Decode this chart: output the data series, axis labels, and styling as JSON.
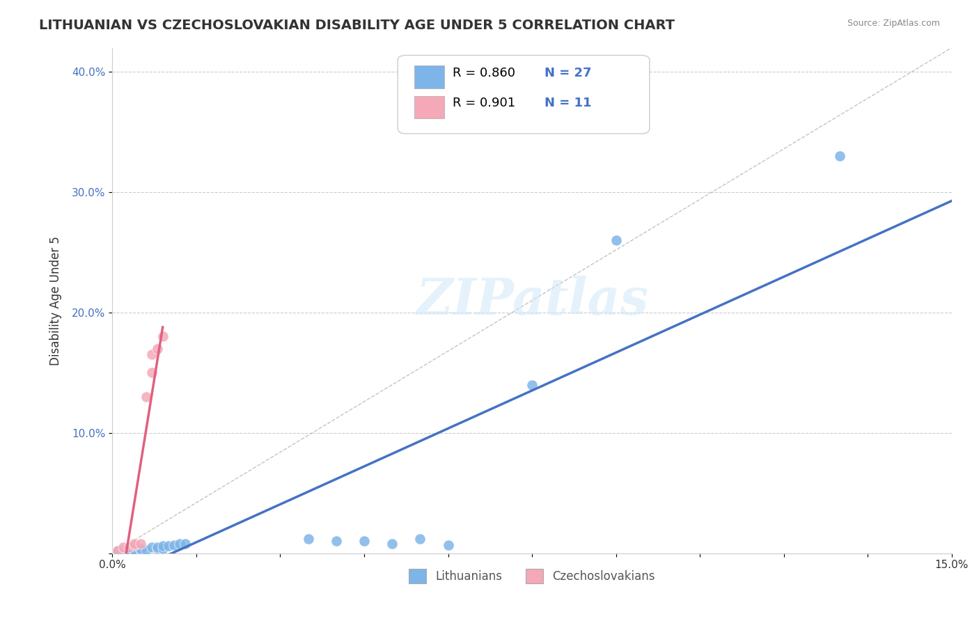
{
  "title": "LITHUANIAN VS CZECHOSLOVAKIAN DISABILITY AGE UNDER 5 CORRELATION CHART",
  "source": "Source: ZipAtlas.com",
  "ylabel": "Disability Age Under 5",
  "xlim": [
    0.0,
    0.15
  ],
  "ylim": [
    0.0,
    0.42
  ],
  "xticks": [
    0.0,
    0.015,
    0.03,
    0.045,
    0.06,
    0.075,
    0.09,
    0.105,
    0.12,
    0.135,
    0.15
  ],
  "yticks": [
    0.0,
    0.1,
    0.2,
    0.3,
    0.4
  ],
  "ytick_labels": [
    "",
    "10.0%",
    "20.0%",
    "30.0%",
    "40.0%"
  ],
  "xtick_labels": [
    "0.0%",
    "",
    "",
    "",
    "",
    "",
    "",
    "",
    "",
    "",
    "15.0%"
  ],
  "background_color": "#ffffff",
  "grid_color": "#cccccc",
  "watermark": "ZIPatlas",
  "legend_R_blue": "0.860",
  "legend_N_blue": "27",
  "legend_R_pink": "0.901",
  "legend_N_pink": "11",
  "blue_color": "#7EB5E8",
  "pink_color": "#F4A8B8",
  "blue_line_color": "#4472C4",
  "pink_line_color": "#E06080",
  "blue_scatter": [
    [
      0.001,
      0.002
    ],
    [
      0.002,
      0.003
    ],
    [
      0.003,
      0.002
    ],
    [
      0.003,
      0.003
    ],
    [
      0.004,
      0.002
    ],
    [
      0.004,
      0.003
    ],
    [
      0.005,
      0.003
    ],
    [
      0.005,
      0.004
    ],
    [
      0.006,
      0.003
    ],
    [
      0.007,
      0.005
    ],
    [
      0.008,
      0.004
    ],
    [
      0.008,
      0.005
    ],
    [
      0.009,
      0.004
    ],
    [
      0.009,
      0.006
    ],
    [
      0.01,
      0.006
    ],
    [
      0.011,
      0.007
    ],
    [
      0.012,
      0.008
    ],
    [
      0.013,
      0.008
    ],
    [
      0.035,
      0.012
    ],
    [
      0.04,
      0.01
    ],
    [
      0.045,
      0.01
    ],
    [
      0.05,
      0.008
    ],
    [
      0.055,
      0.012
    ],
    [
      0.06,
      0.007
    ],
    [
      0.075,
      0.14
    ],
    [
      0.09,
      0.26
    ],
    [
      0.13,
      0.33
    ]
  ],
  "pink_scatter": [
    [
      0.001,
      0.002
    ],
    [
      0.002,
      0.005
    ],
    [
      0.003,
      0.005
    ],
    [
      0.004,
      0.007
    ],
    [
      0.004,
      0.008
    ],
    [
      0.005,
      0.008
    ],
    [
      0.006,
      0.13
    ],
    [
      0.007,
      0.15
    ],
    [
      0.007,
      0.165
    ],
    [
      0.008,
      0.17
    ],
    [
      0.009,
      0.18
    ]
  ],
  "ref_line_style": "--",
  "ref_line_color": "#aaaaaa"
}
